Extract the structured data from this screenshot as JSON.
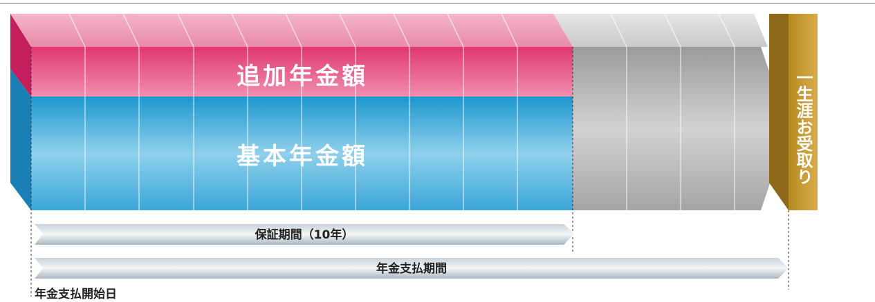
{
  "blocks": {
    "additional": "追加年金額",
    "basic": "基本年金額",
    "lifetime": "一生涯お受取り"
  },
  "periods": {
    "guarantee": "保証期間（10年）",
    "payment": "年金支払期間"
  },
  "start_label": "年金支払開始日"
}
